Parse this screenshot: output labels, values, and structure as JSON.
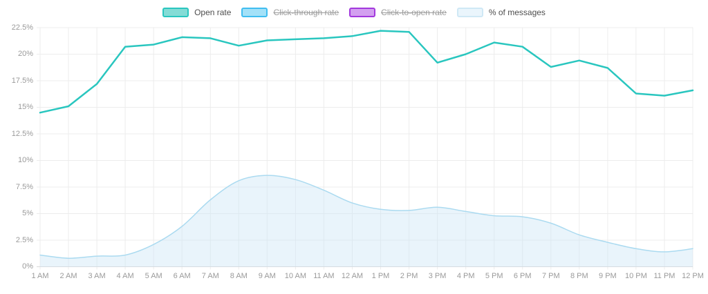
{
  "legend": {
    "items": [
      {
        "id": "open-rate",
        "label": "Open rate",
        "fill": "#84dcd6",
        "border": "#29c6bf",
        "disabled": false
      },
      {
        "id": "click-through-rate",
        "label": "Click-through rate",
        "fill": "#a3e1f8",
        "border": "#3fbdf0",
        "disabled": true
      },
      {
        "id": "click-to-open-rate",
        "label": "Click-to-open rate",
        "fill": "#d3a0f0",
        "border": "#a238dd",
        "disabled": true
      },
      {
        "id": "percent-of-messages",
        "label": "% of messages",
        "fill": "#eaf5fc",
        "border": "#cfe8f5",
        "disabled": false
      }
    ]
  },
  "chart_data": {
    "type": "line",
    "categories": [
      "1 AM",
      "2 AM",
      "3 AM",
      "4 AM",
      "5 AM",
      "6 AM",
      "7 AM",
      "8 AM",
      "9 AM",
      "10 AM",
      "11 AM",
      "12 AM",
      "1 PM",
      "2 PM",
      "3 PM",
      "4 PM",
      "5 PM",
      "6 PM",
      "7 PM",
      "8 PM",
      "9 PM",
      "10 PM",
      "11 PM",
      "12 PM"
    ],
    "series": [
      {
        "name": "Open rate",
        "type": "line",
        "color": "#29c6bf",
        "values": [
          14.5,
          15.1,
          17.2,
          20.7,
          20.9,
          21.6,
          21.5,
          20.8,
          21.3,
          21.4,
          21.5,
          21.7,
          22.2,
          22.1,
          19.2,
          20.0,
          21.1,
          20.7,
          18.8,
          19.4,
          18.7,
          16.3,
          16.1,
          16.6
        ]
      },
      {
        "name": "% of messages",
        "type": "area",
        "line_color": "#aadaf0",
        "fill_color": "#cfe7f6",
        "fill_opacity": 0.45,
        "values": [
          1.1,
          0.8,
          1.0,
          1.1,
          2.1,
          3.8,
          6.3,
          8.1,
          8.6,
          8.2,
          7.2,
          6.0,
          5.4,
          5.3,
          5.6,
          5.2,
          4.8,
          4.7,
          4.1,
          3.0,
          2.3,
          1.7,
          1.4,
          1.7
        ]
      },
      {
        "name": "Click-through rate",
        "type": "line",
        "hidden": true
      },
      {
        "name": "Click-to-open rate",
        "type": "line",
        "hidden": true
      }
    ],
    "ylim": [
      0,
      22.5
    ],
    "ytick_step": 2.5,
    "ytick_suffix": "%",
    "grid": true,
    "legend_position": "top"
  },
  "colors": {
    "grid": "#ececec",
    "axis_line": "#d9d9d9",
    "tick_text": "#9a9a9a",
    "background": "#ffffff"
  }
}
